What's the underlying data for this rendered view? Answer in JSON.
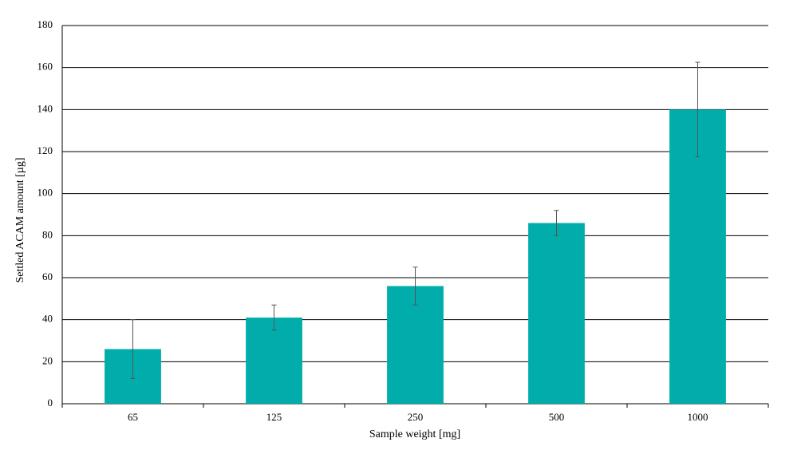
{
  "chart_data": {
    "type": "bar",
    "x_label": "Sample weight [mg]",
    "y_label": "Settled ACAM amount [µg]",
    "categories": [
      "65",
      "125",
      "250",
      "500",
      "1000"
    ],
    "values": [
      26,
      41,
      56,
      86,
      140
    ],
    "errors": [
      14,
      6,
      9,
      6,
      22.5
    ],
    "color": "#00adaa",
    "ylim": [
      0,
      180
    ],
    "yticks": [
      0,
      20,
      40,
      60,
      80,
      100,
      120,
      140,
      160,
      180
    ],
    "grid": true
  }
}
